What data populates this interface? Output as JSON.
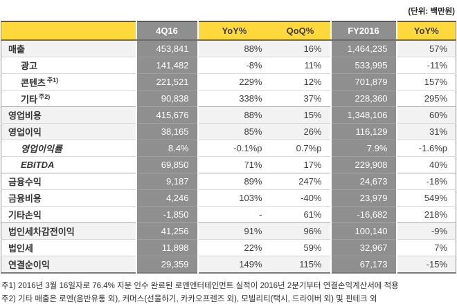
{
  "unit_label": "(단위: 백만원)",
  "chart_data": {
    "type": "table",
    "unit_label": "(단위: 백만원)",
    "columns": [
      "",
      "4Q16",
      "YoY%",
      "QoQ%",
      "FY2016",
      "YoY%"
    ],
    "rows": [
      {
        "label": "매출",
        "q4": "453,841",
        "yoy": "88%",
        "qoq": "16%",
        "fy2016": "1,464,235",
        "fy_yoy": "57%"
      },
      {
        "label": "광고",
        "q4": "141,482",
        "yoy": "-8%",
        "qoq": "11%",
        "fy2016": "533,995",
        "fy_yoy": "-11%"
      },
      {
        "label": "콘텐츠",
        "note_ref": "주1)",
        "q4": "221,521",
        "yoy": "229%",
        "qoq": "12%",
        "fy2016": "701,879",
        "fy_yoy": "157%"
      },
      {
        "label": "기타",
        "note_ref": "주2)",
        "q4": "90,838",
        "yoy": "338%",
        "qoq": "37%",
        "fy2016": "228,360",
        "fy_yoy": "295%"
      },
      {
        "label": "영업비용",
        "q4": "415,676",
        "yoy": "88%",
        "qoq": "15%",
        "fy2016": "1,348,106",
        "fy_yoy": "60%"
      },
      {
        "label": "영업이익",
        "q4": "38,165",
        "yoy": "85%",
        "qoq": "26%",
        "fy2016": "116,129",
        "fy_yoy": "31%"
      },
      {
        "label": "영업이익률",
        "q4": "8.4%",
        "yoy": "-0.1%p",
        "qoq": "0.7%p",
        "fy2016": "7.9%",
        "fy_yoy": "-1.6%p"
      },
      {
        "label": "EBITDA",
        "q4": "69,850",
        "yoy": "71%",
        "qoq": "17%",
        "fy2016": "229,908",
        "fy_yoy": "40%"
      },
      {
        "label": "금융수익",
        "q4": "9,187",
        "yoy": "89%",
        "qoq": "247%",
        "fy2016": "24,673",
        "fy_yoy": "-18%"
      },
      {
        "label": "금융비용",
        "q4": "4,246",
        "yoy": "103%",
        "qoq": "-40%",
        "fy2016": "23,979",
        "fy_yoy": "549%"
      },
      {
        "label": "기타손익",
        "q4": "-1,850",
        "yoy": "-",
        "qoq": "61%",
        "fy2016": "-16,682",
        "fy_yoy": "218%"
      },
      {
        "label": "법인세차감전이익",
        "q4": "41,256",
        "yoy": "91%",
        "qoq": "96%",
        "fy2016": "100,140",
        "fy_yoy": "-9%"
      },
      {
        "label": "법인세",
        "q4": "11,898",
        "yoy": "22%",
        "qoq": "59%",
        "fy2016": "32,967",
        "fy_yoy": "7%"
      },
      {
        "label": "연결순이익",
        "q4": "29,359",
        "yoy": "149%",
        "qoq": "115%",
        "fy2016": "67,173",
        "fy_yoy": "-15%"
      }
    ],
    "footnotes": [
      "주1) 2016년 3월 16일자로 76.4% 지분 인수 완료된 로엔엔터테인먼트 실적이 2016년 2분기부터 연결손익계산서에 적용",
      "주2) 기타 매출은 로엔(음반유통 외), 커머스(선물하기, 카카오프렌즈 외), 모빌리티(택시, 드라이버 외) 및 핀테크 외"
    ],
    "colors": {
      "header_yellow": "#ffd83c",
      "column_gray": "#8f8f8f",
      "band_gray": "#f2f2f2",
      "border_dark": "#595959"
    },
    "layout": {
      "grid": false,
      "gray_value_columns": [
        "4Q16",
        "FY2016"
      ],
      "highlight_band_rows": [
        "매출",
        "영업비용",
        "영업이익",
        "법인세차감전이익",
        "연결순이익"
      ]
    }
  }
}
